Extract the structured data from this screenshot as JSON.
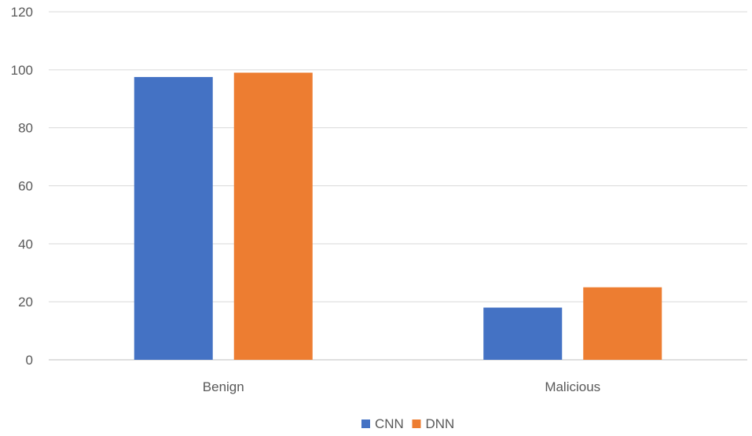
{
  "chart_data": {
    "type": "bar",
    "title": "",
    "xlabel": "",
    "ylabel": "",
    "categories": [
      "Benign",
      "Malicious"
    ],
    "series": [
      {
        "name": "CNN",
        "color": "#4472C4",
        "values": [
          97.5,
          18
        ]
      },
      {
        "name": "DNN",
        "color": "#ED7D31",
        "values": [
          99,
          25
        ]
      }
    ],
    "ylim": [
      0,
      120
    ],
    "yticks": [
      0,
      20,
      40,
      60,
      80,
      100,
      120
    ],
    "grid": true,
    "legend": "bottom-center"
  }
}
